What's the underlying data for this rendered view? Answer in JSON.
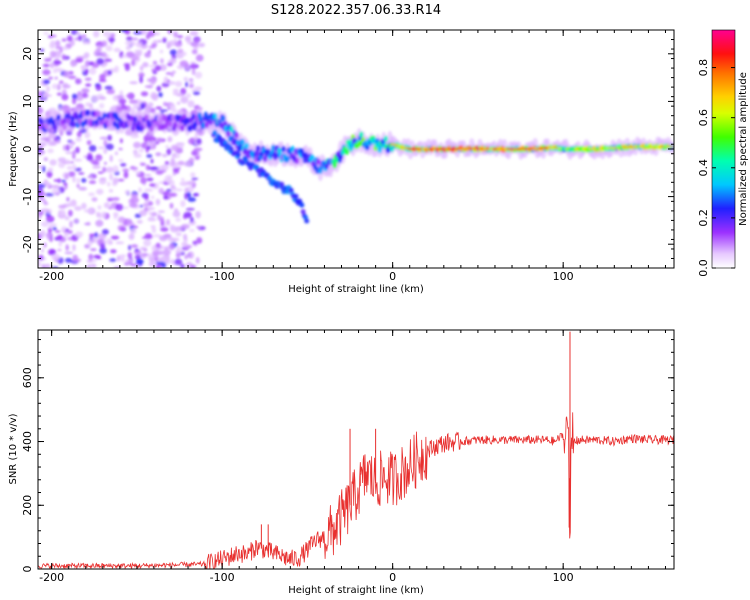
{
  "title": "S128.2022.357.06.33.R14",
  "chart_data": [
    {
      "type": "heatmap",
      "xlabel": "Height of straight line (km)",
      "ylabel": "Frequency (Hz)",
      "xlim": [
        -208,
        165
      ],
      "ylim": [
        -25,
        25
      ],
      "xticks": [
        -200,
        -100,
        0,
        100
      ],
      "yticks": [
        -20,
        -10,
        0,
        10,
        20
      ],
      "colorbar": {
        "label": "Normalized spectral amplitude",
        "range": [
          0,
          0.95
        ],
        "ticks": [
          "0.0",
          "0.2",
          "0.4",
          "0.6",
          "0.8"
        ],
        "tick_values": [
          0.0,
          0.2,
          0.4,
          0.6,
          0.8
        ]
      },
      "ridge": {
        "x": [
          -208,
          -180,
          -150,
          -120,
          -110,
          -100,
          -90,
          -80,
          -70,
          -60,
          -50,
          -42,
          -35,
          -28,
          -20,
          -10,
          0,
          10,
          20,
          40,
          60,
          80,
          95,
          100,
          120,
          140,
          165
        ],
        "freq_hz": [
          5,
          6.5,
          5.5,
          5.5,
          6,
          5.5,
          1,
          -1,
          -1,
          -1,
          -2,
          -4,
          -3,
          0,
          2,
          1,
          1,
          0,
          0,
          0,
          0,
          0,
          0.3,
          0,
          0,
          0.5,
          0.5
        ],
        "amplitude": [
          0.2,
          0.25,
          0.2,
          0.2,
          0.3,
          0.35,
          0.3,
          0.3,
          0.3,
          0.3,
          0.3,
          0.3,
          0.4,
          0.45,
          0.5,
          0.5,
          0.55,
          0.7,
          0.75,
          0.75,
          0.75,
          0.75,
          0.65,
          0.5,
          0.6,
          0.6,
          0.6
        ]
      },
      "branch": {
        "x": [
          -105,
          -90,
          -80,
          -70,
          -60,
          -55,
          -50
        ],
        "freq_hz": [
          3,
          -2,
          -4,
          -7,
          -9,
          -11,
          -15
        ]
      }
    },
    {
      "type": "line",
      "xlabel": "Height of straight line (km)",
      "ylabel": "SNR (10 * v/v)",
      "xlim": [
        -208,
        165
      ],
      "ylim": [
        0,
        750
      ],
      "xticks": [
        -200,
        -100,
        0,
        100
      ],
      "yticks": [
        0,
        200,
        400,
        600
      ],
      "color": "#e8302f",
      "series": [
        {
          "x": [
            -208,
            -150,
            -110,
            -100,
            -95,
            -90,
            -85,
            -80,
            -75,
            -70,
            -65,
            -60,
            -55,
            -50,
            -45,
            -40,
            -35,
            -30,
            -25,
            -20,
            -15,
            -10,
            -5,
            0,
            5,
            10,
            15,
            20,
            25,
            30,
            40,
            50,
            60,
            70,
            80,
            90,
            95,
            100,
            102,
            103,
            104,
            105,
            106,
            110,
            120,
            130,
            140,
            150,
            165
          ],
          "values": [
            10,
            10,
            15,
            30,
            40,
            50,
            45,
            70,
            60,
            50,
            40,
            30,
            35,
            60,
            90,
            100,
            120,
            160,
            200,
            250,
            300,
            270,
            290,
            280,
            300,
            320,
            350,
            370,
            385,
            395,
            400,
            405,
            405,
            405,
            405,
            405,
            400,
            420,
            380,
            440,
            130,
            420,
            400,
            405,
            405,
            400,
            410,
            405,
            405
          ]
        }
      ],
      "spikes": [
        {
          "x": 104,
          "value": 745
        },
        {
          "x": 103.5,
          "value": 130
        },
        {
          "x": -25,
          "value": 440
        },
        {
          "x": -10,
          "value": 440
        },
        {
          "x": -19,
          "value": 300
        },
        {
          "x": -77,
          "value": 140
        },
        {
          "x": -73,
          "value": 140
        }
      ]
    }
  ]
}
